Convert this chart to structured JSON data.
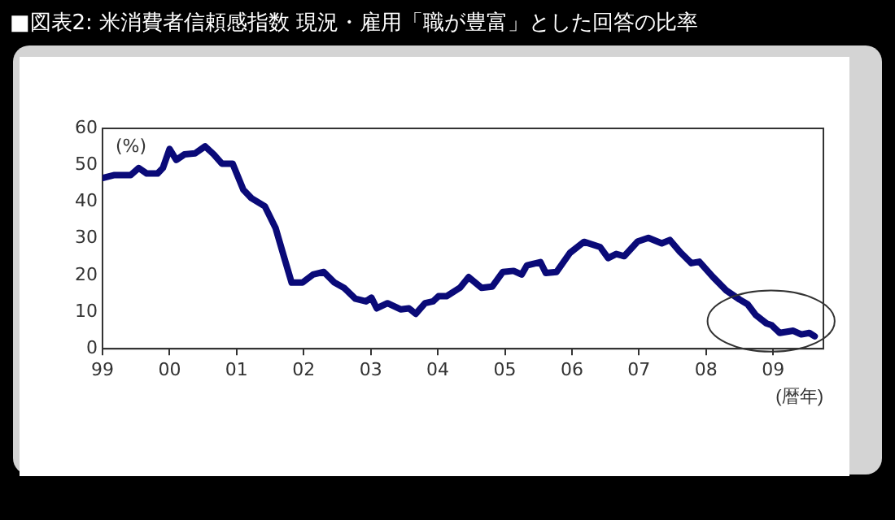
{
  "chart_data": {
    "type": "line",
    "title": "■図表2: 米消費者信頼感指数 現況・雇用「職が豊富」とした回答の比率",
    "ylabel": "(%)",
    "xlabel": "(暦年)",
    "x": [
      1999.0,
      1999.18,
      1999.42,
      1999.54,
      1999.66,
      1999.82,
      1999.9,
      2000.0,
      2000.1,
      2000.22,
      2000.38,
      2000.53,
      2000.66,
      2000.78,
      2000.94,
      2001.1,
      2001.22,
      2001.42,
      2001.58,
      2001.7,
      2001.82,
      2001.98,
      2002.14,
      2002.3,
      2002.46,
      2002.6,
      2002.77,
      2002.93,
      2003.01,
      2003.09,
      2003.25,
      2003.45,
      2003.57,
      2003.67,
      2003.81,
      2003.93,
      2004.01,
      2004.13,
      2004.33,
      2004.46,
      2004.65,
      2004.81,
      2004.97,
      2005.13,
      2005.25,
      2005.33,
      2005.53,
      2005.61,
      2005.77,
      2005.97,
      2006.18,
      2006.42,
      2006.54,
      2006.66,
      2006.78,
      2006.98,
      2007.14,
      2007.34,
      2007.46,
      2007.62,
      2007.78,
      2007.9,
      2008.1,
      2008.3,
      2008.5,
      2008.62,
      2008.74,
      2008.9,
      2008.98,
      2009.1,
      2009.3,
      2009.42,
      2009.54,
      2009.62
    ],
    "series": [
      {
        "color": "#0a0a78",
        "values": [
          46.5,
          47.3,
          47.3,
          49.2,
          47.7,
          47.7,
          49.2,
          54.4,
          51.4,
          52.9,
          53.2,
          55.1,
          52.9,
          50.4,
          50.4,
          43.3,
          41.0,
          38.8,
          32.9,
          25.4,
          18.0,
          18.0,
          20.2,
          20.9,
          18.0,
          16.6,
          13.6,
          12.9,
          13.9,
          11.0,
          12.4,
          10.7,
          11.0,
          9.5,
          12.4,
          12.9,
          14.3,
          14.3,
          16.6,
          19.5,
          16.6,
          16.9,
          20.9,
          21.2,
          20.2,
          22.7,
          23.6,
          20.6,
          20.9,
          26.1,
          29.1,
          27.7,
          24.7,
          25.8,
          25.2,
          29.2,
          30.2,
          28.7,
          29.6,
          26.2,
          23.3,
          23.7,
          19.6,
          15.9,
          13.4,
          12.1,
          9.2,
          6.9,
          6.4,
          4.3,
          4.9,
          3.9,
          4.3,
          3.4
        ]
      }
    ],
    "xlim": [
      1999,
      2009.75
    ],
    "xticks": [
      {
        "value": 1999,
        "label": "99"
      },
      {
        "value": 2000,
        "label": "00"
      },
      {
        "value": 2001,
        "label": "01"
      },
      {
        "value": 2002,
        "label": "02"
      },
      {
        "value": 2003,
        "label": "03"
      },
      {
        "value": 2004,
        "label": "04"
      },
      {
        "value": 2005,
        "label": "05"
      },
      {
        "value": 2006,
        "label": "06"
      },
      {
        "value": 2007,
        "label": "07"
      },
      {
        "value": 2008,
        "label": "08"
      },
      {
        "value": 2009,
        "label": "09"
      }
    ],
    "ylim": [
      0,
      60
    ],
    "yticks": [
      0,
      10,
      20,
      30,
      40,
      50,
      60
    ],
    "grid": false,
    "legend": false,
    "marker": "none",
    "line_style": "solid"
  }
}
